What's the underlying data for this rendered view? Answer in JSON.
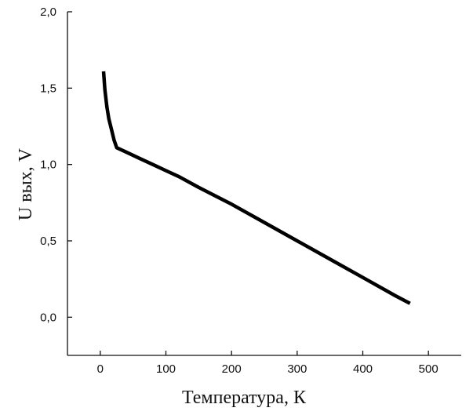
{
  "chart_data": {
    "type": "line",
    "title": "",
    "xlabel": "Температура, К",
    "ylabel": "U вых, V",
    "xlim": [
      -50,
      550
    ],
    "ylim": [
      -0.25,
      2.0
    ],
    "xticks": [
      0,
      100,
      200,
      300,
      400,
      500
    ],
    "yticks": [
      0.0,
      0.5,
      1.0,
      1.5,
      2.0
    ],
    "xtick_labels": [
      "0",
      "100",
      "200",
      "300",
      "400",
      "500"
    ],
    "ytick_labels": [
      "0,0",
      "0,5",
      "1,0",
      "1,5",
      "2,0"
    ],
    "grid": false,
    "series": [
      {
        "color": "#000000",
        "x": [
          5,
          7,
          10,
          13,
          17,
          21,
          25,
          30,
          40,
          60,
          80,
          100,
          120,
          150,
          200,
          250,
          300,
          350,
          400,
          450,
          472
        ],
        "y": [
          1.61,
          1.49,
          1.38,
          1.3,
          1.23,
          1.16,
          1.11,
          1.1,
          1.08,
          1.04,
          1.0,
          0.96,
          0.92,
          0.85,
          0.74,
          0.62,
          0.5,
          0.38,
          0.26,
          0.14,
          0.09
        ]
      }
    ]
  }
}
